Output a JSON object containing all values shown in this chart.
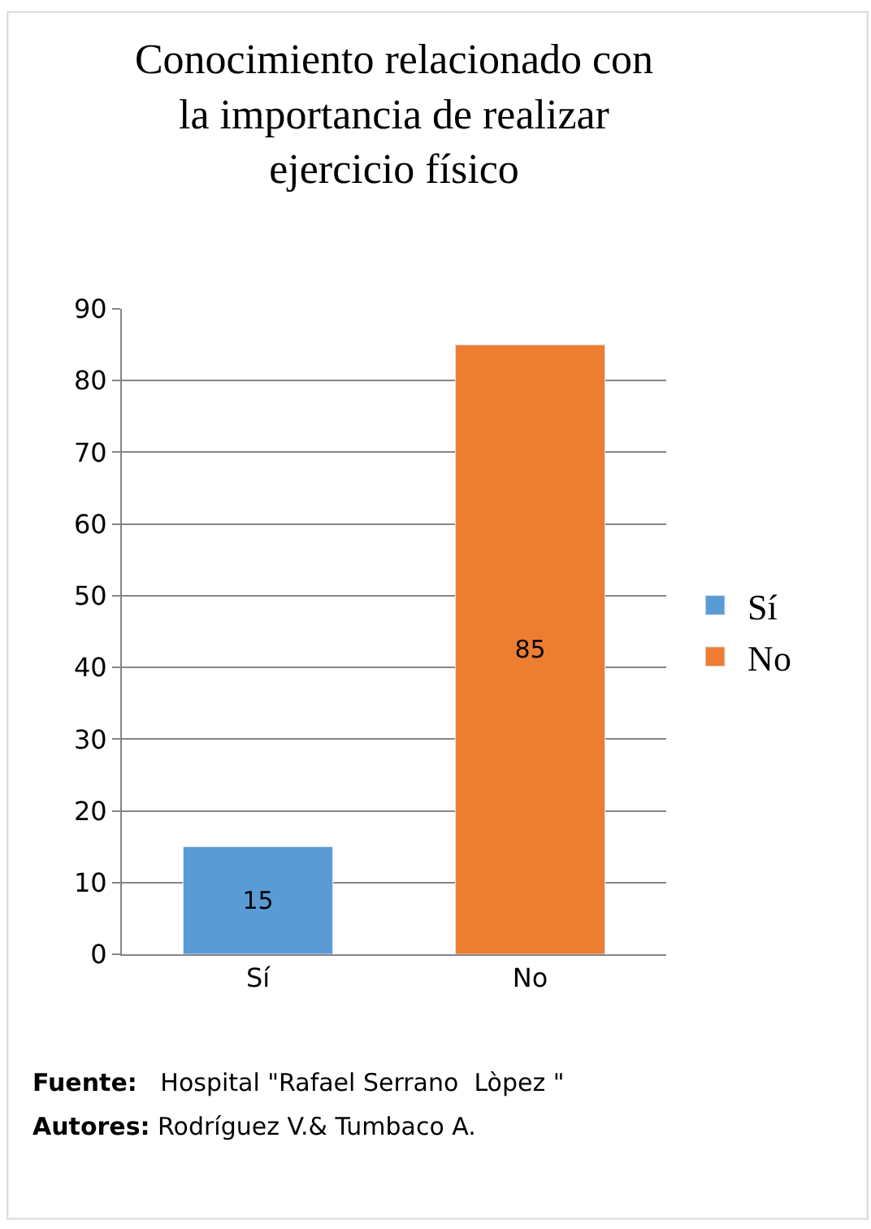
{
  "chart_data": {
    "type": "bar",
    "title": "Conocimiento relacionado con\nla importancia de realizar\nejercicio físico",
    "categories": [
      "Sí",
      "No"
    ],
    "series": [
      {
        "name": "Sí",
        "color": "#5b9bd5",
        "values": [
          15,
          null
        ]
      },
      {
        "name": "No",
        "color": "#ed7d31",
        "values": [
          null,
          85
        ]
      }
    ],
    "ylim": [
      0,
      90
    ],
    "yticks": [
      0,
      10,
      20,
      30,
      40,
      50,
      60,
      70,
      80,
      90
    ],
    "grid": "y",
    "legend": "right",
    "data_labels": true,
    "annotations": [
      "Fuente:   Hospital \"Rafael Serrano  Lòpez \"",
      "Autores: Rodríguez V.& Tumbaco A."
    ]
  }
}
